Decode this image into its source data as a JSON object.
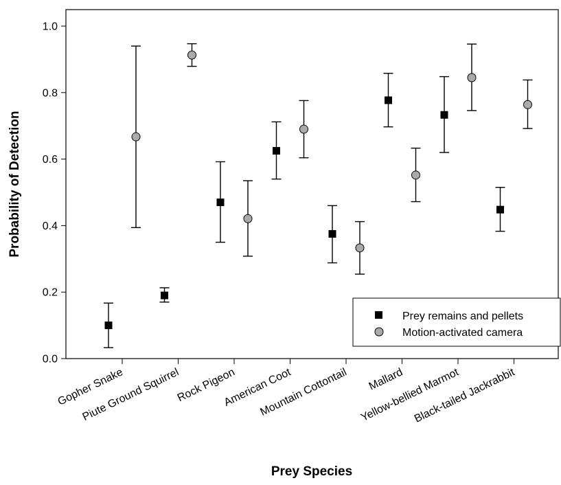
{
  "chart_data": {
    "type": "scatter",
    "xlabel": "Prey Species",
    "ylabel": "Probability of Detection",
    "ylim": [
      0.0,
      1.0
    ],
    "yticks": [
      "0.0",
      "0.2",
      "0.4",
      "0.6",
      "0.8",
      "1.0"
    ],
    "categories": [
      "Gopher Snake",
      "Piute Ground Squirrel",
      "Rock Pigeon",
      "American Coot",
      "Mountain Cottontail",
      "Mallard",
      "Yellow-bellied Marmot",
      "Black-tailed Jackrabbit"
    ],
    "grid": false,
    "legend_position": "bottom-right",
    "series": [
      {
        "name": "Prey remains and pellets",
        "marker": "square",
        "color": "#000000",
        "values": [
          0.1,
          0.19,
          0.47,
          0.625,
          0.375,
          0.777,
          0.733,
          0.448
        ],
        "lower": [
          0.033,
          0.17,
          0.35,
          0.54,
          0.288,
          0.697,
          0.62,
          0.383
        ],
        "upper": [
          0.167,
          0.213,
          0.592,
          0.712,
          0.46,
          0.858,
          0.848,
          0.515
        ]
      },
      {
        "name": "Motion-activated camera",
        "marker": "circle",
        "color": "#aaaaaa",
        "values": [
          0.667,
          0.913,
          0.421,
          0.69,
          0.333,
          0.552,
          0.845,
          0.764
        ],
        "lower": [
          0.394,
          0.879,
          0.308,
          0.604,
          0.254,
          0.472,
          0.746,
          0.692
        ],
        "upper": [
          0.94,
          0.947,
          0.535,
          0.776,
          0.412,
          0.633,
          0.946,
          0.838
        ]
      }
    ]
  }
}
